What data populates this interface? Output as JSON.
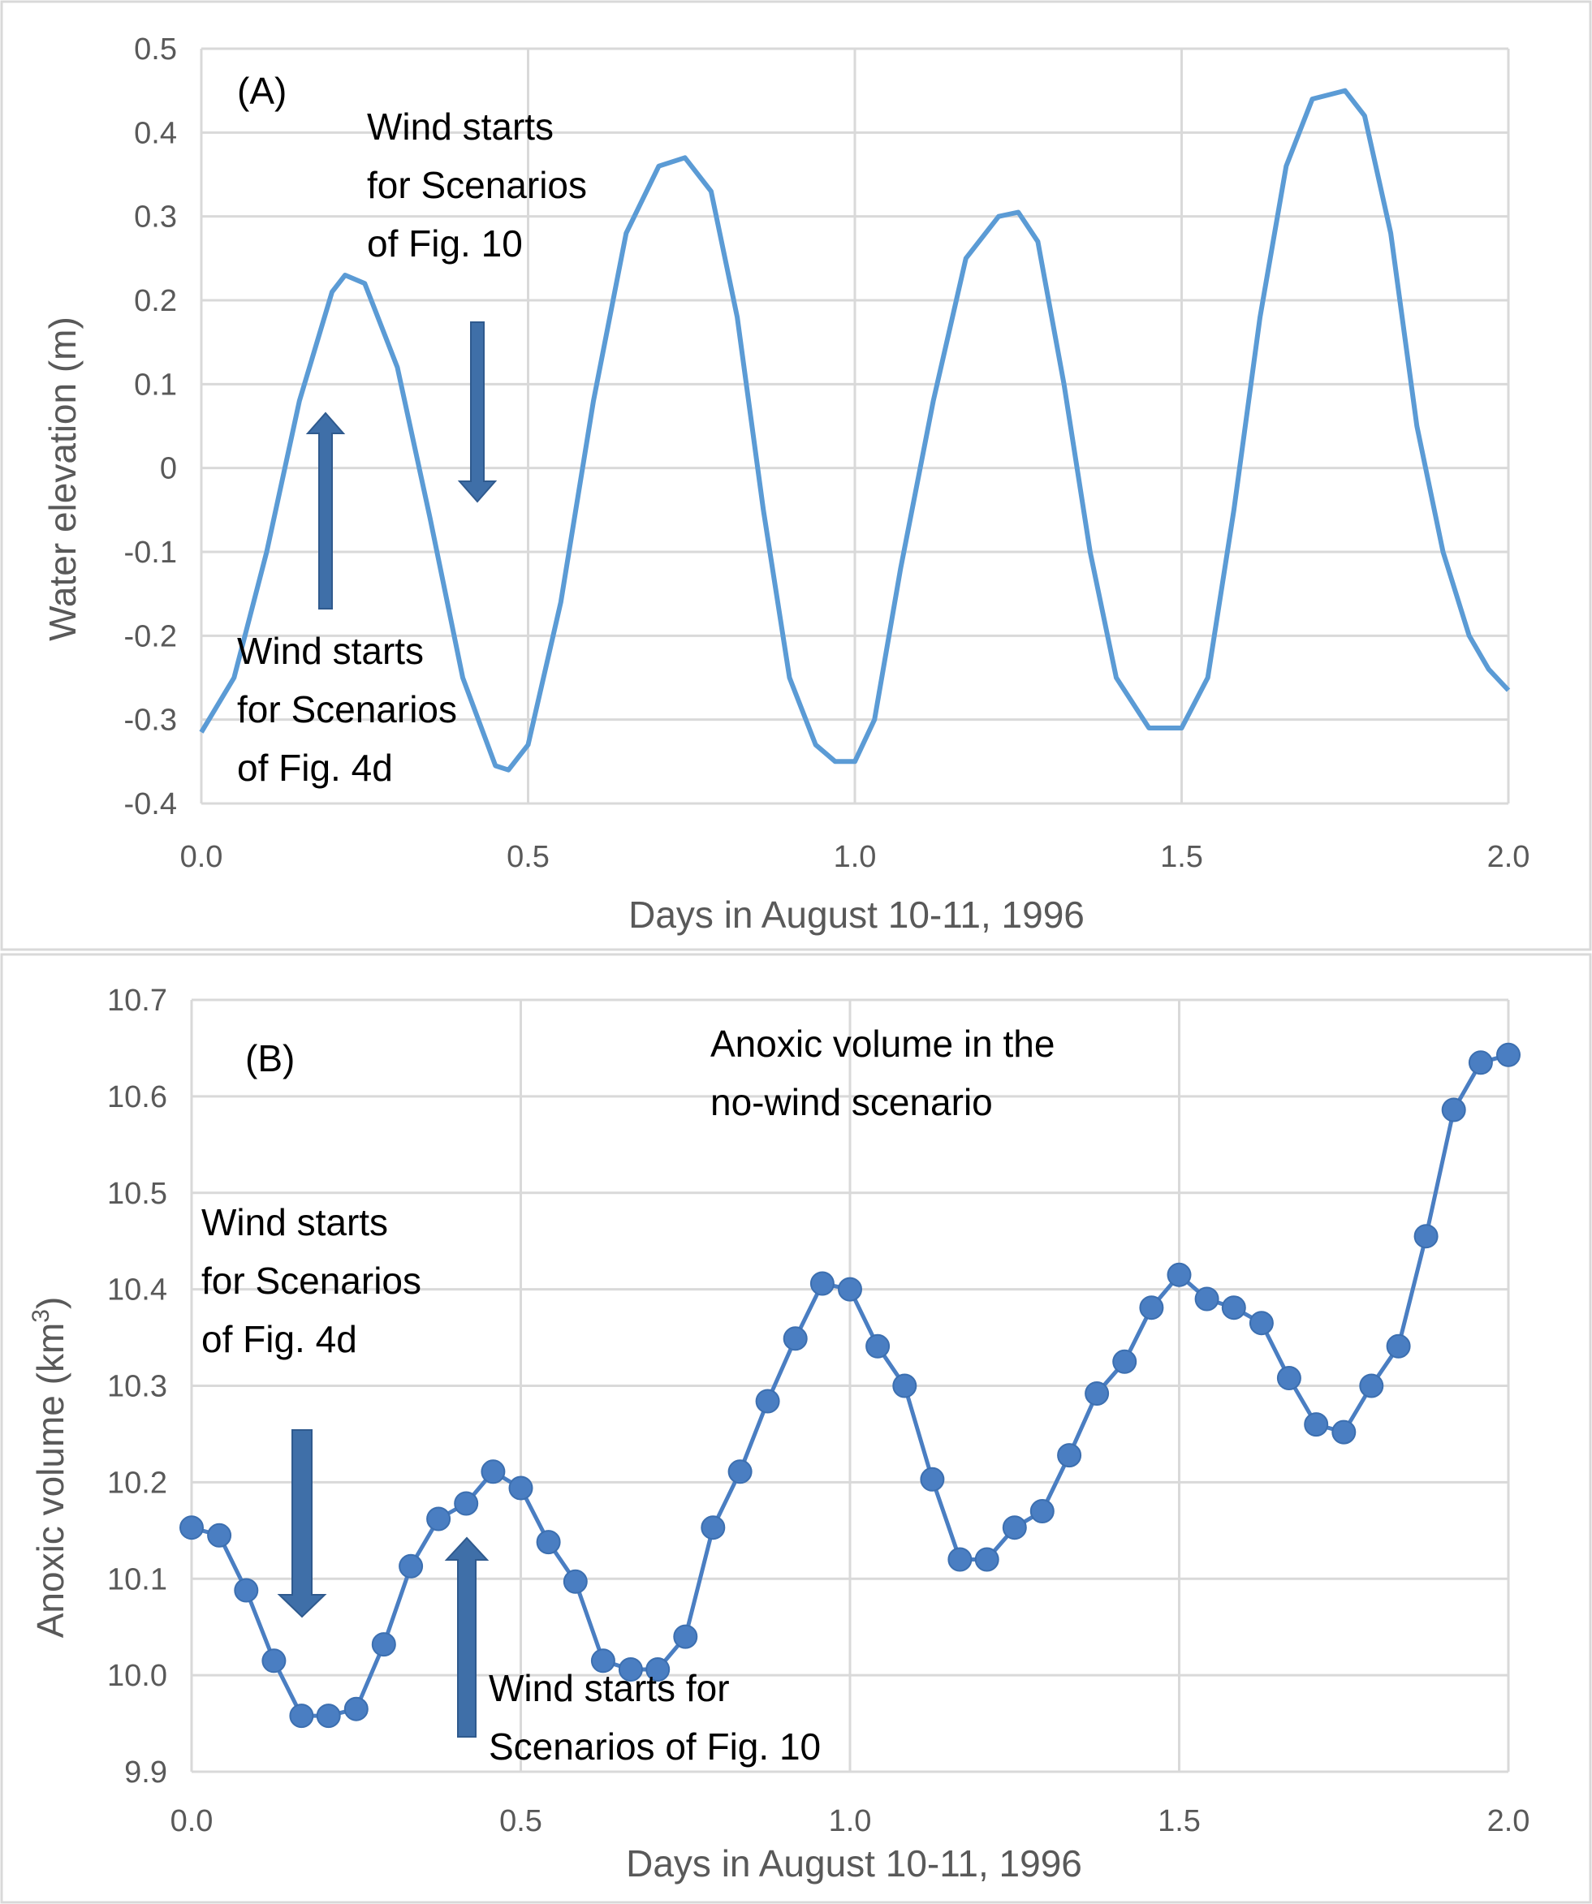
{
  "chart_data": [
    {
      "type": "line",
      "panel_label": "(A)",
      "xlabel": "Days in August 10-11, 1996",
      "ylabel": "Water elevation (m)",
      "xlim": [
        0.0,
        2.0
      ],
      "ylim": [
        -0.4,
        0.5
      ],
      "x_ticks": [
        "0.0",
        "0.5",
        "1.0",
        "1.5",
        "2.0"
      ],
      "y_ticks": [
        "0.5",
        "0.4",
        "0.3",
        "0.2",
        "0.1",
        "0",
        "-0.1",
        "-0.2",
        "-0.3",
        "-0.4"
      ],
      "grid": true,
      "series": [
        {
          "name": "Water elevation",
          "color": "#5b9bd5",
          "x": [
            0.0,
            0.05,
            0.1,
            0.15,
            0.2,
            0.22,
            0.25,
            0.3,
            0.35,
            0.4,
            0.45,
            0.47,
            0.5,
            0.55,
            0.6,
            0.65,
            0.7,
            0.74,
            0.78,
            0.82,
            0.86,
            0.9,
            0.94,
            0.97,
            1.0,
            1.03,
            1.07,
            1.12,
            1.17,
            1.22,
            1.25,
            1.28,
            1.32,
            1.36,
            1.4,
            1.45,
            1.5,
            1.54,
            1.58,
            1.62,
            1.66,
            1.7,
            1.75,
            1.78,
            1.82,
            1.86,
            1.9,
            1.94,
            1.97,
            2.0
          ],
          "values": [
            -0.315,
            -0.25,
            -0.1,
            0.08,
            0.21,
            0.23,
            0.22,
            0.12,
            -0.06,
            -0.25,
            -0.355,
            -0.36,
            -0.33,
            -0.16,
            0.08,
            0.28,
            0.36,
            0.37,
            0.33,
            0.18,
            -0.05,
            -0.25,
            -0.33,
            -0.35,
            -0.35,
            -0.3,
            -0.12,
            0.08,
            0.25,
            0.3,
            0.305,
            0.27,
            0.1,
            -0.1,
            -0.25,
            -0.31,
            -0.31,
            -0.25,
            -0.05,
            0.18,
            0.36,
            0.44,
            0.45,
            0.42,
            0.28,
            0.05,
            -0.1,
            -0.2,
            -0.24,
            -0.265
          ]
        }
      ],
      "annotations": [
        {
          "lines": [
            "Wind starts",
            "for Scenarios",
            "of Fig. 10"
          ],
          "arrow": "down",
          "x": 0.43
        },
        {
          "lines": [
            "Wind starts",
            "for Scenarios",
            "of Fig. 4d"
          ],
          "arrow": "up",
          "x": 0.19
        }
      ]
    },
    {
      "type": "line",
      "panel_label": "(B)",
      "xlabel": "Days in August 10-11, 1996",
      "ylabel": "Anoxic volume (km",
      "ylabel_sup": "3",
      "ylabel_close": ")",
      "xlim": [
        0.0,
        2.0
      ],
      "ylim": [
        9.9,
        10.7
      ],
      "x_ticks": [
        "0.0",
        "0.5",
        "1.0",
        "1.5",
        "2.0"
      ],
      "y_ticks": [
        "10.7",
        "10.6",
        "10.5",
        "10.4",
        "10.3",
        "10.2",
        "10.1",
        "10.0",
        "9.9"
      ],
      "grid": true,
      "series": [
        {
          "name": "Anoxic volume in the no-wind scenario",
          "color": "#4a7ec2",
          "x": [
            0.0,
            0.042,
            0.083,
            0.125,
            0.167,
            0.208,
            0.25,
            0.292,
            0.333,
            0.375,
            0.417,
            0.458,
            0.5,
            0.542,
            0.583,
            0.625,
            0.667,
            0.708,
            0.75,
            0.792,
            0.833,
            0.875,
            0.917,
            0.958,
            1.0,
            1.042,
            1.083,
            1.125,
            1.167,
            1.208,
            1.25,
            1.292,
            1.333,
            1.375,
            1.417,
            1.458,
            1.5,
            1.542,
            1.583,
            1.625,
            1.667,
            1.708,
            1.75,
            1.792,
            1.833,
            1.875,
            1.917,
            1.958,
            2.0
          ],
          "values": [
            10.153,
            10.145,
            10.088,
            10.015,
            9.958,
            9.958,
            9.965,
            10.032,
            10.113,
            10.162,
            10.178,
            10.211,
            10.194,
            10.138,
            10.097,
            10.015,
            10.006,
            10.006,
            10.04,
            10.153,
            10.211,
            10.284,
            10.349,
            10.406,
            10.4,
            10.341,
            10.3,
            10.203,
            10.12,
            10.12,
            10.153,
            10.17,
            10.228,
            10.292,
            10.325,
            10.381,
            10.415,
            10.39,
            10.381,
            10.365,
            10.308,
            10.26,
            10.252,
            10.3,
            10.341,
            10.455,
            10.586,
            10.635,
            10.643
          ]
        }
      ],
      "annotations": [
        {
          "lines": [
            "Anoxic volume in the",
            "no-wind scenario"
          ]
        },
        {
          "lines": [
            "Wind starts",
            "for Scenarios",
            "of Fig. 4d"
          ],
          "arrow": "down",
          "x": 0.165
        },
        {
          "lines": [
            "Wind starts for",
            "Scenarios of Fig. 10"
          ],
          "arrow": "up",
          "x": 0.415
        }
      ]
    }
  ]
}
